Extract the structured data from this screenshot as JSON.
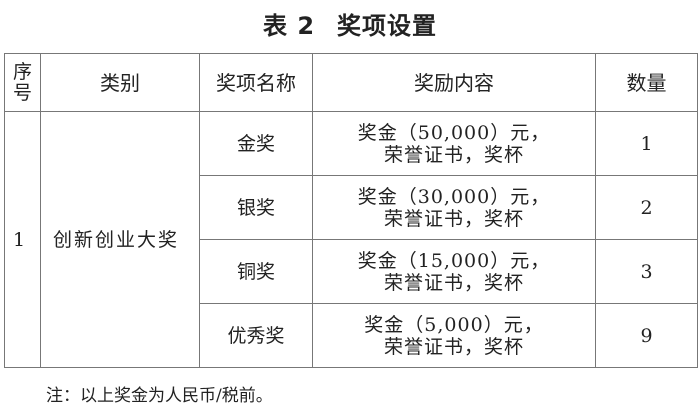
{
  "title": {
    "number": "表 2",
    "text": "奖项设置"
  },
  "table": {
    "headers": [
      "序号",
      "类别",
      "奖项名称",
      "奖励内容",
      "数量"
    ],
    "seq_header_lines": [
      "序",
      "号"
    ],
    "seq": "1",
    "category": "创新创业大奖",
    "rows": [
      {
        "name": "金奖",
        "content_line1": "奖金（50,000）元，",
        "content_line2": "荣誉证书，奖杯",
        "count": "1"
      },
      {
        "name": "银奖",
        "content_line1": "奖金（30,000）元，",
        "content_line2": "荣誉证书，奖杯",
        "count": "2"
      },
      {
        "name": "铜奖",
        "content_line1": "奖金（15,000）元，",
        "content_line2": "荣誉证书，奖杯",
        "count": "3"
      },
      {
        "name": "优秀奖",
        "content_line1": "奖金（5,000）元，",
        "content_line2": "荣誉证书，奖杯",
        "count": "9"
      }
    ]
  },
  "note": "注：以上奖金为人民币/税前。"
}
